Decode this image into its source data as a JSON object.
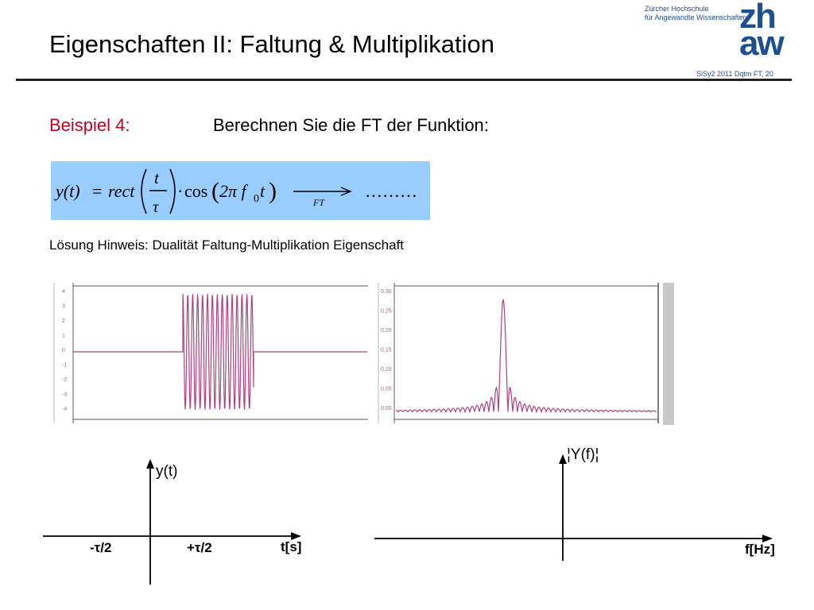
{
  "slide": {
    "title": "Eigenschaften II: Faltung & Multiplikation",
    "institution_line1": "Zürcher Hochschule",
    "institution_line2": "für Angewandte Wissenschaften",
    "logo_top": "zh",
    "logo_bottom": "aw",
    "slide_info": "SiSy2 2011 Dqtm FT, 20"
  },
  "example": {
    "label": "Beispiel 4:",
    "task": "Berechnen Sie die FT der Funktion:",
    "formula": {
      "lhs": "y(t)",
      "eq": "=",
      "fn": "rect",
      "frac_num": "t",
      "frac_den": "τ",
      "dot": "·",
      "cos": "cos",
      "arg": "2π f",
      "sub": "0",
      "arg_end": "t",
      "arrow_label": "FT",
      "result": "………"
    },
    "hint": "Lösung Hinweis: Dualität Faltung-Multiplikation Eigenschaft"
  },
  "scope_left": {
    "y_ticks": [
      "4",
      "3",
      "2",
      "1",
      "0",
      "-1",
      "-2",
      "-3",
      "-4"
    ]
  },
  "scope_right": {
    "y_ticks": [
      "0,30",
      "0,25",
      "0,20",
      "0,15",
      "0,10",
      "0,05",
      "0,00"
    ]
  },
  "sketch_time": {
    "y_label": "y(t)",
    "x_label": "t[s]",
    "tick_left": "-τ/2",
    "tick_right": "+τ/2"
  },
  "sketch_freq": {
    "y_label": "¦Y(f)¦",
    "x_label": "f[Hz]"
  },
  "colors": {
    "accent": "#c0001f",
    "formula_bg": "#99ccff",
    "signal": "#b0407f",
    "brand": "#1d4f91"
  }
}
